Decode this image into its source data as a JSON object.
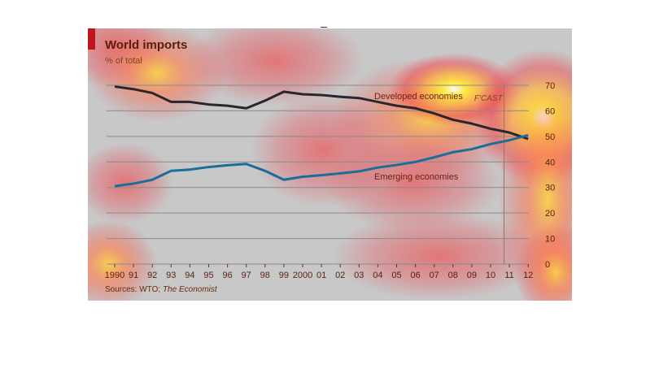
{
  "colors": {
    "panel_bg": "#c8c8c8",
    "accent_red": "#c0141e",
    "developed_line": "#2b2530",
    "emerging_line": "#1b6e9a",
    "gridline": "#8a8a8a",
    "tick_text": "#5a1f0a"
  },
  "chart_data": {
    "type": "line",
    "title": "World imports",
    "subtitle": "% of total",
    "source": {
      "prefix": "Sources: WTO; ",
      "italic": "The Economist"
    },
    "forecast_label": "F'CAST",
    "xlabel": "",
    "ylabel": "",
    "x_tick_labels": [
      "1990",
      "91",
      "92",
      "93",
      "94",
      "95",
      "96",
      "97",
      "98",
      "99",
      "2000",
      "01",
      "02",
      "03",
      "04",
      "05",
      "06",
      "07",
      "08",
      "09",
      "10",
      "11",
      "12"
    ],
    "ylim": [
      0,
      70
    ],
    "y_ticks": [
      0,
      10,
      20,
      30,
      40,
      50,
      60,
      70
    ],
    "grid": true,
    "series": [
      {
        "name": "Developed economies",
        "values": [
          69.5,
          68.5,
          67,
          63.5,
          63.5,
          62.5,
          62,
          61,
          64,
          67.5,
          66.5,
          66.2,
          65.5,
          65,
          63.5,
          62,
          61,
          59,
          56.5,
          55,
          53,
          51.5,
          49
        ]
      },
      {
        "name": "Emerging economies",
        "values": [
          30.5,
          31.5,
          33,
          36.5,
          37,
          38,
          38.7,
          39.2,
          36.5,
          33,
          34.2,
          34.8,
          35.5,
          36.3,
          37.8,
          38.8,
          40,
          41.8,
          43.8,
          45,
          47,
          48.5,
          50.5
        ]
      }
    ],
    "forecast_start_index": 21
  }
}
